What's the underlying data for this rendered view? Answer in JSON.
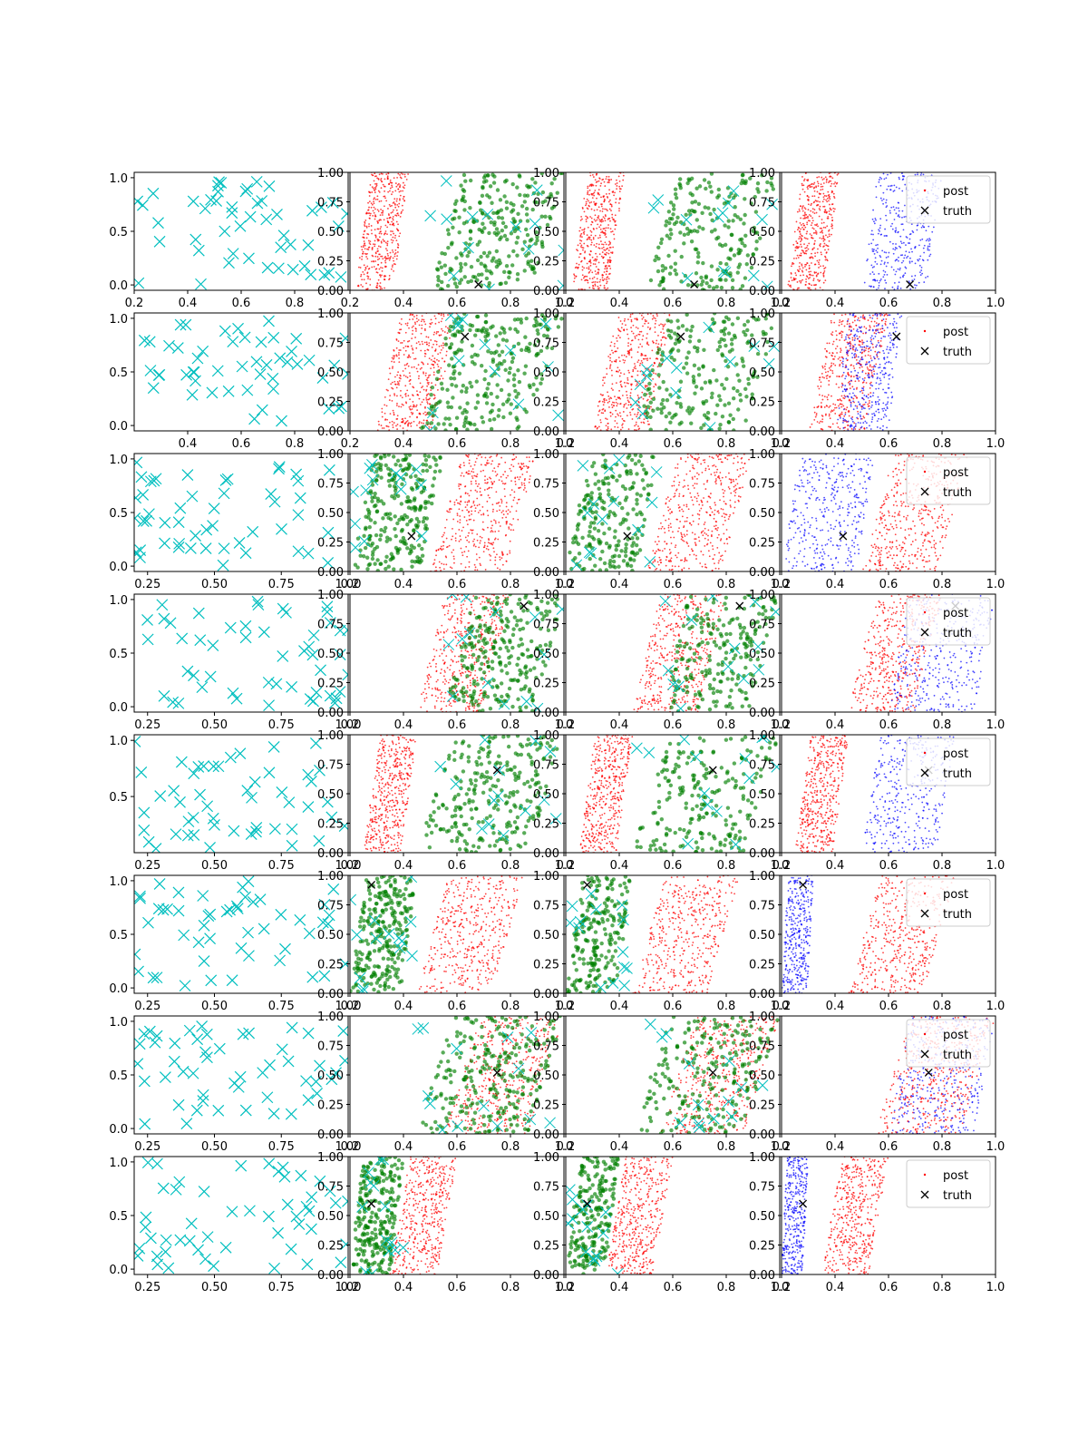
{
  "legend": {
    "post": "post",
    "truth": "truth"
  },
  "colors": {
    "samples": "#00bfbf",
    "posterior_a": "#ff0000",
    "posterior_b": "#008000",
    "posterior_c": "#0000ff",
    "truth": "#000000"
  },
  "chart_data": {
    "type": "scatter",
    "grid": false,
    "legend_placement": "upper right (4th column)",
    "rows": [
      {
        "truth": [
          0.68,
          0.05
        ],
        "col1": {
          "xlim": [
            0.2,
            1.0
          ],
          "xticks": [
            "0.2",
            "0.4",
            "0.6",
            "0.8"
          ],
          "yticks": [
            "0.0",
            "0.5",
            "1.0"
          ],
          "ylim": [
            -0.05,
            1.05
          ]
        },
        "bands": {
          "red": [
            0.22,
            0.42
          ],
          "green": [
            0.5,
            1.0
          ],
          "blue": [
            0.5,
            0.8
          ]
        }
      },
      {
        "truth": [
          0.63,
          0.8
        ],
        "col1": {
          "xlim": [
            0.2,
            1.0
          ],
          "xticks": [
            "0.4",
            "0.6",
            "0.8"
          ],
          "yticks": [
            "0.0",
            "0.5",
            "1.0"
          ],
          "ylim": [
            -0.05,
            1.05
          ]
        },
        "bands": {
          "red": [
            0.3,
            0.6
          ],
          "green": [
            0.45,
            1.0
          ],
          "blue": [
            0.4,
            0.65
          ]
        }
      },
      {
        "truth": [
          0.43,
          0.3
        ],
        "col1": {
          "xlim": [
            0.2,
            1.0
          ],
          "xticks": [
            "0.25",
            "0.50",
            "0.75",
            "1.00"
          ],
          "yticks": [
            "0.0",
            "0.5",
            "1.0"
          ],
          "ylim": [
            -0.05,
            1.05
          ]
        },
        "bands": {
          "red": [
            0.5,
            0.9
          ],
          "green": [
            0.2,
            0.55
          ],
          "blue": [
            0.2,
            0.55
          ]
        }
      },
      {
        "truth": [
          0.85,
          0.9
        ],
        "col1": {
          "xlim": [
            0.2,
            1.0
          ],
          "xticks": [
            "0.25",
            "0.50",
            "0.75",
            "1.00"
          ],
          "yticks": [
            "0.0",
            "0.5",
            "1.0"
          ],
          "ylim": [
            -0.05,
            1.05
          ]
        },
        "bands": {
          "red": [
            0.45,
            0.8
          ],
          "green": [
            0.55,
            1.0
          ],
          "blue": [
            0.6,
            1.0
          ]
        }
      },
      {
        "truth": [
          0.75,
          0.7
        ],
        "col1": {
          "xlim": [
            0.2,
            1.0
          ],
          "xticks": [
            "0.25",
            "0.50",
            "0.75",
            "1.00"
          ],
          "yticks": [
            "0.5",
            "1.0"
          ],
          "ylim": [
            0.0,
            1.05
          ]
        },
        "bands": {
          "red": [
            0.25,
            0.45
          ],
          "green": [
            0.45,
            1.0
          ],
          "blue": [
            0.5,
            0.85
          ]
        }
      },
      {
        "truth": [
          0.28,
          0.92
        ],
        "col1": {
          "xlim": [
            0.2,
            1.0
          ],
          "xticks": [
            "0.25",
            "0.50",
            "0.75",
            "1.00"
          ],
          "yticks": [
            "0.0",
            "0.5",
            "1.0"
          ],
          "ylim": [
            -0.05,
            1.05
          ]
        },
        "bands": {
          "red": [
            0.45,
            0.85
          ],
          "green": [
            0.2,
            0.45
          ],
          "blue": [
            0.2,
            0.32
          ]
        }
      },
      {
        "truth": [
          0.75,
          0.52
        ],
        "col1": {
          "xlim": [
            0.2,
            1.0
          ],
          "xticks": [
            "0.25",
            "0.50",
            "0.75",
            "1.00"
          ],
          "yticks": [
            "0.0",
            "0.5",
            "1.0"
          ],
          "ylim": [
            -0.05,
            1.05
          ]
        },
        "bands": {
          "red": [
            0.55,
            1.0
          ],
          "green": [
            0.45,
            1.0
          ],
          "blue": [
            0.6,
            1.0
          ]
        }
      },
      {
        "truth": [
          0.28,
          0.6
        ],
        "col1": {
          "xlim": [
            0.2,
            1.0
          ],
          "xticks": [
            "0.25",
            "0.50",
            "0.75",
            "1.00"
          ],
          "yticks": [
            "0.0",
            "0.5",
            "1.0"
          ],
          "ylim": [
            -0.05,
            1.05
          ]
        },
        "bands": {
          "red": [
            0.35,
            0.6
          ],
          "green": [
            0.2,
            0.4
          ],
          "blue": [
            0.2,
            0.3
          ]
        }
      }
    ],
    "posterior_axes": {
      "xlim": [
        0.2,
        1.0
      ],
      "ylim": [
        0.0,
        1.0
      ],
      "xticks": [
        "0.2",
        "0.4",
        "0.6",
        "0.8",
        "1.0"
      ],
      "yticks": [
        "0.00",
        "0.25",
        "0.50",
        "0.75",
        "1.00"
      ]
    }
  }
}
